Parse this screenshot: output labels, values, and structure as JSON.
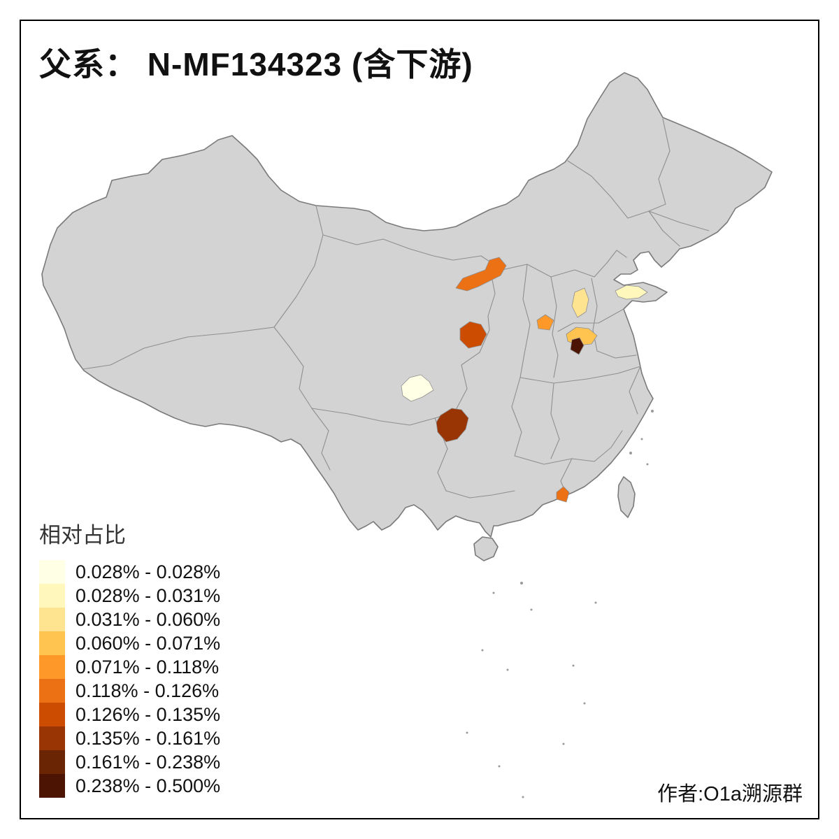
{
  "title": "父系： N-MF134323 (含下游)",
  "attribution": "作者:O1a溯源群",
  "legend": {
    "title": "相对占比",
    "items": [
      {
        "label": "0.028% - 0.028%",
        "color": "#FFFFE5"
      },
      {
        "label": "0.028% - 0.031%",
        "color": "#FFF7BC"
      },
      {
        "label": "0.031% - 0.060%",
        "color": "#FEE391"
      },
      {
        "label": "0.060% - 0.071%",
        "color": "#FEC44F"
      },
      {
        "label": "0.071% - 0.118%",
        "color": "#FE9929"
      },
      {
        "label": "0.118% - 0.126%",
        "color": "#EC7014"
      },
      {
        "label": "0.126% - 0.135%",
        "color": "#CC4C02"
      },
      {
        "label": "0.135% - 0.161%",
        "color": "#993404"
      },
      {
        "label": "0.161% - 0.238%",
        "color": "#6A2505"
      },
      {
        "label": "0.238% - 0.500%",
        "color": "#4C1503"
      }
    ]
  },
  "map": {
    "base_fill": "#d3d3d3",
    "border_color": "#8f8f8f",
    "highlights": [
      {
        "id": "region-1",
        "color": "#EC7014"
      },
      {
        "id": "region-2",
        "color": "#CC4C02"
      },
      {
        "id": "region-3",
        "color": "#FEE391"
      },
      {
        "id": "region-4",
        "color": "#FEC44F"
      },
      {
        "id": "region-5",
        "color": "#FE9929"
      },
      {
        "id": "region-6",
        "color": "#4C1503"
      },
      {
        "id": "region-7",
        "color": "#FFF7BC"
      },
      {
        "id": "region-8",
        "color": "#FFFFE5"
      },
      {
        "id": "region-9",
        "color": "#993404"
      },
      {
        "id": "region-10",
        "color": "#EC7014"
      }
    ]
  }
}
